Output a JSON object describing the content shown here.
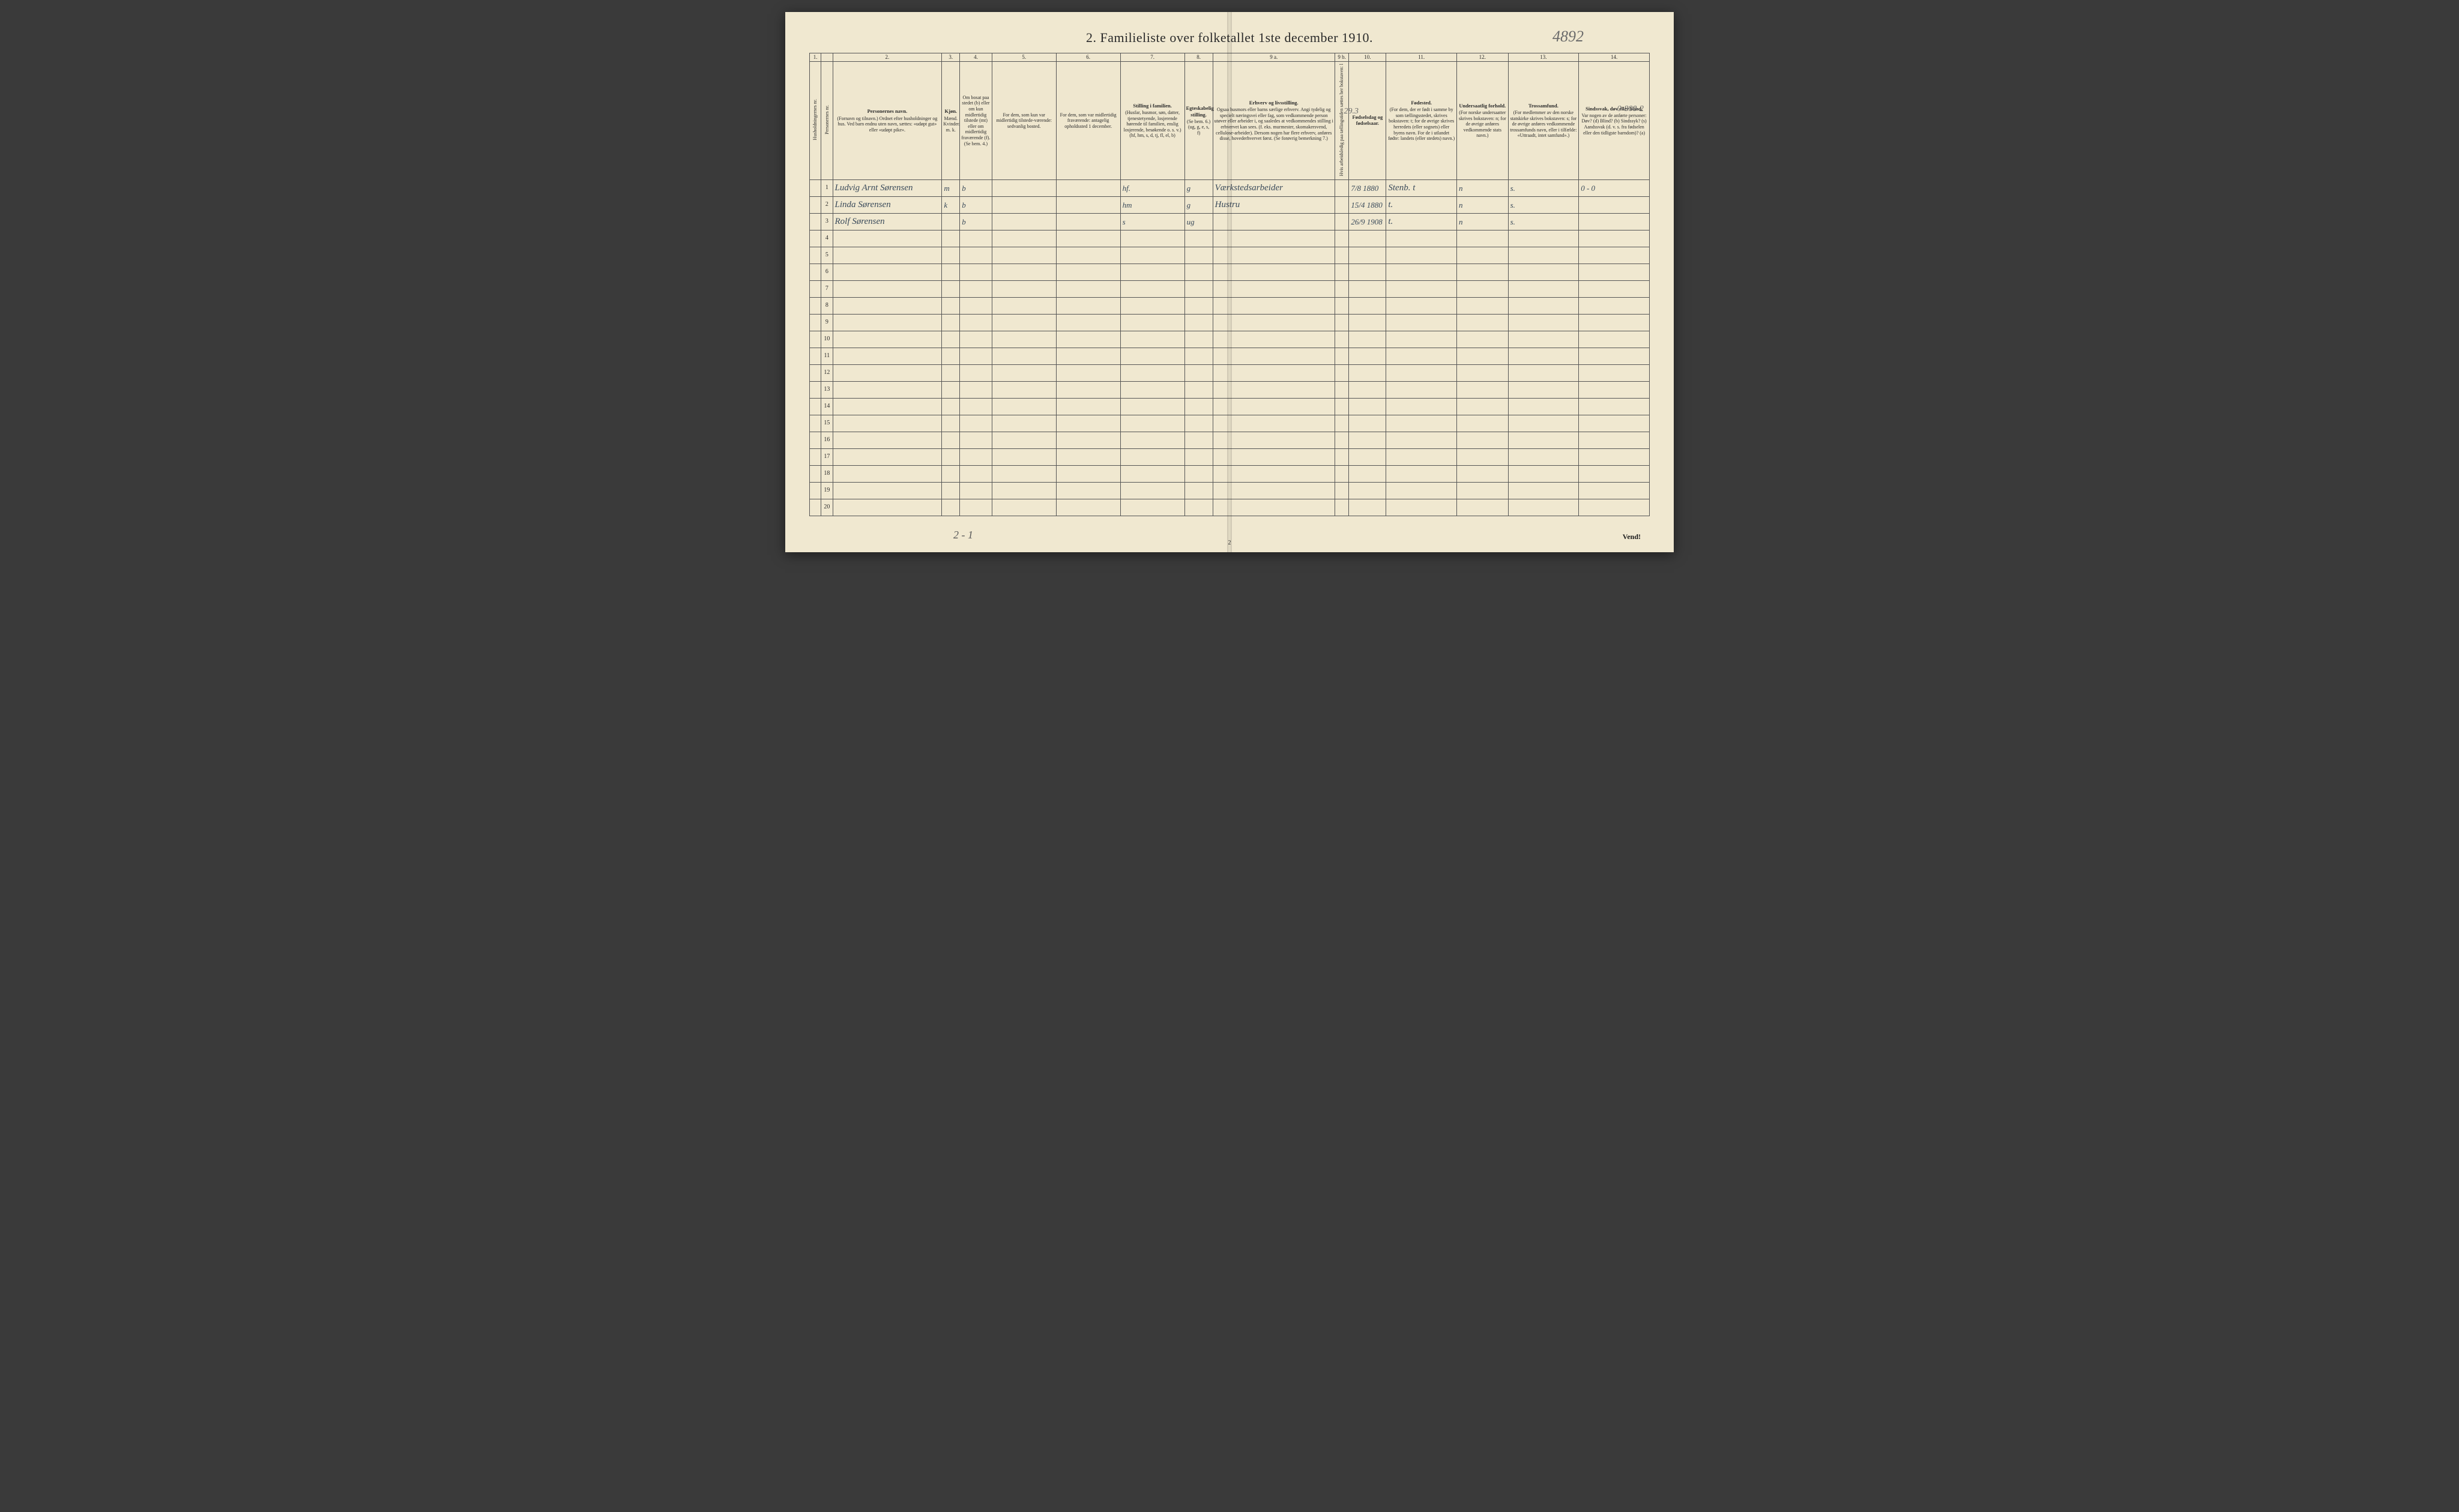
{
  "title": "2.  Familieliste over folketallet 1ste december 1910.",
  "handwritten_top_right": "4892",
  "column_numbers": [
    "1.",
    "",
    "2.",
    "3.",
    "4.",
    "5.",
    "6.",
    "7.",
    "8.",
    "9 a.",
    "9 b.",
    "10.",
    "11.",
    "12.",
    "13.",
    "14."
  ],
  "headers": {
    "c1": {
      "title": "",
      "body": "Husholdningernes nr."
    },
    "c1b": {
      "title": "",
      "body": "Personernes nr."
    },
    "c2": {
      "title": "Personernes navn.",
      "body": "(Fornavn og tilnavn.)\nOrdnet efter husholdninger og hus.\nVed barn endnu uten navn, sættes: «udøpt gut» eller «udøpt pike»."
    },
    "c3": {
      "title": "Kjøn.",
      "body": "Mænd. Kvinder.\nm. k."
    },
    "c4": {
      "title": "",
      "body": "Om bosat paa stedet (b) eller om kun midlertidig tilstede (mt) eller om midlertidig fraværende (f). (Se bem. 4.)"
    },
    "c5": {
      "title": "",
      "body": "For dem, som kun var midlertidig tilstede-værende:\nsedvanlig bosted."
    },
    "c6": {
      "title": "",
      "body": "For dem, som var midlertidig fraværende:\nantagelig opholdssted 1 december."
    },
    "c7": {
      "title": "Stilling i familien.",
      "body": "(Husfar, husmor, søn, datter, tjenestetyende, losjerende hørende til familien, enslig losjerende, besøkende o. s. v.)\n(hf, hm, s, d, tj, fl, el, b)"
    },
    "c8": {
      "title": "Egteskabelig stilling.",
      "body": "(Se bem. 6.)\n(ug, g, e, s, f)"
    },
    "c9a": {
      "title": "Erhverv og livsstilling.",
      "body": "Ogsaa husmors eller barns særlige erhverv. Angi tydelig og specielt næringsvei eller fag, som vedkommende person utøver eller arbeider i, og saaledes at vedkommendes stilling i erhvervet kan sees. (f. eks. murmester, skomakersvend, cellulose-arbeider). Dersom nogen har flere erhverv, anføres disse, hovederhvervet først. (Se forøvrig bemerkning 7.)"
    },
    "c9b": {
      "title": "",
      "body": "Hvis arbeidsledig paa tællingstiden sættes her bokstaven: l"
    },
    "c10": {
      "title": "Fødselsdag og fødselsaar.",
      "body": ""
    },
    "c11": {
      "title": "Fødested.",
      "body": "(For dem, der er født i samme by som tællingsstedet, skrives bokstaven: t; for de øvrige skrives herredets (eller sognets) eller byens navn. For de i utlandet fødte: landets (eller stedets) navn.)"
    },
    "c12": {
      "title": "Undersaatlig forhold.",
      "body": "(For norske undersaatter skrives bokstaven: n; for de øvrige anføres vedkommende stats navn.)"
    },
    "c13": {
      "title": "Trossamfund.",
      "body": "(For medlemmer av den norske statskirke skrives bokstaven: s; for de øvrige anføres vedkommende trossamfunds navn, eller i tilfælde: «Uttraadt, intet samfund».)"
    },
    "c14": {
      "title": "Sindssvak, døv eller blind.",
      "body": "Var nogen av de anførte personer:\nDøv? (d)\nBlind? (b)\nSindssyk? (s)\nAandssvak (d. v. s. fra fødselen eller den tidligste barndom)? (a)"
    }
  },
  "annotations": {
    "above_row1_col9": "29.3",
    "above_row1_col14": "0-800-2",
    "row1_col14_small": "0 - 0"
  },
  "rows": [
    {
      "n": "1",
      "name": "Ludvig Arnt Sørensen",
      "sex": "m",
      "res": "b",
      "c7": "hf.",
      "c8": "g",
      "c9a": "Værkstedsarbeider",
      "c10": "7/8 1880",
      "c11": "Stenb. t",
      "c12": "n",
      "c13": "s."
    },
    {
      "n": "2",
      "name": "Linda Sørensen",
      "sex": "k",
      "res": "b",
      "c7": "hm",
      "c8": "g",
      "c9a": "Hustru",
      "c10": "15/4 1880",
      "c11": "t.",
      "c12": "n",
      "c13": "s."
    },
    {
      "n": "3",
      "name": "Rolf Sørensen",
      "sex": "",
      "res": "b",
      "c7": "s",
      "c8": "ug",
      "c9a": "",
      "c10": "26/9 1908",
      "c11": "t.",
      "c12": "n",
      "c13": "s."
    }
  ],
  "empty_row_count": 17,
  "bottom_handwritten": "2 - 1",
  "page_number": "2",
  "vend": "Vend!",
  "col_widths": [
    "18px",
    "18px",
    "170px",
    "28px",
    "50px",
    "100px",
    "100px",
    "100px",
    "44px",
    "190px",
    "22px",
    "58px",
    "110px",
    "80px",
    "110px",
    "110px"
  ]
}
